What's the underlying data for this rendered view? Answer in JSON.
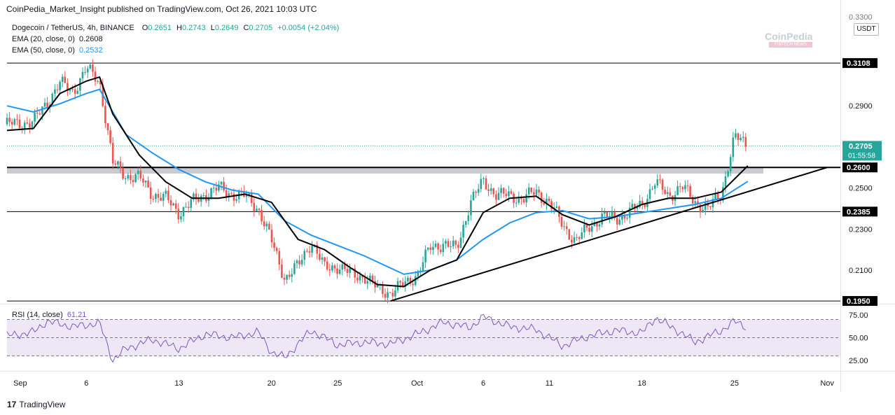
{
  "header": {
    "publisher": "CoinPedia_Market_Insight published on TradingView.com, Oct 26, 2021 10:03 UTC"
  },
  "legend": {
    "symbol": "Dogecoin / TetherUS, 4h, BINANCE",
    "open_label": "O",
    "open": "0.2651",
    "high_label": "H",
    "high": "0.2743",
    "low_label": "L",
    "low": "0.2649",
    "close_label": "C",
    "close": "0.2705",
    "change": "+0.0054 (+2.04%)",
    "ema20_label": "EMA (20, close, 0)",
    "ema20_value": "0.2608",
    "ema50_label": "EMA (50, close, 0)",
    "ema50_value": "0.2532",
    "rsi_label": "RSI (14, close)",
    "rsi_value": "61.21"
  },
  "currency_button": "USDT",
  "logo": {
    "name": "CoinPedia",
    "tag": "FINTECH NEWS"
  },
  "footer": {
    "brand": "TradingView"
  },
  "colors": {
    "up": "#26a69a",
    "down": "#ef5350",
    "ema20": "#000000",
    "ema50": "#2196f3",
    "rsi": "#7e57c2",
    "rsi_band": "#ede7f6",
    "zone": "#b2b5be"
  },
  "chart_data": [
    {
      "type": "candlestick",
      "title": "Dogecoin / TetherUS, 4h, BINANCE",
      "x_ticks": [
        "Sep",
        "6",
        "13",
        "20",
        "25",
        "Oct",
        "6",
        "11",
        "18",
        "25",
        "Nov"
      ],
      "y_ticks": [
        "0.2900",
        "0.2700",
        "0.2500",
        "0.2300",
        "0.2100"
      ],
      "y_top_partial": "0.3300",
      "ylim": [
        0.194,
        0.334
      ],
      "horizontal_levels": [
        {
          "value": 0.3108,
          "label": "0.3108"
        },
        {
          "value": 0.26,
          "label": "0.2600"
        },
        {
          "value": 0.2385,
          "label": "0.2385"
        },
        {
          "value": 0.195,
          "label": "0.1950"
        }
      ],
      "support_zone": {
        "from": 0.257,
        "to": 0.26
      },
      "last_price": {
        "value": 0.2705,
        "label": "0.2705",
        "countdown": "01:55:58"
      },
      "trendline": {
        "from": {
          "date": "2021-09-29",
          "value": 0.195
        },
        "to": {
          "date": "2021-11-01",
          "value": 0.26
        }
      },
      "ema20": [
        [
          "2021-08-31",
          0.278
        ],
        [
          "2021-09-02",
          0.279
        ],
        [
          "2021-09-04",
          0.296
        ],
        [
          "2021-09-06",
          0.302
        ],
        [
          "2021-09-07",
          0.304
        ],
        [
          "2021-09-08",
          0.286
        ],
        [
          "2021-09-10",
          0.266
        ],
        [
          "2021-09-12",
          0.253
        ],
        [
          "2021-09-14",
          0.245
        ],
        [
          "2021-09-16",
          0.245
        ],
        [
          "2021-09-18",
          0.247
        ],
        [
          "2021-09-20",
          0.243
        ],
        [
          "2021-09-22",
          0.225
        ],
        [
          "2021-09-24",
          0.22
        ],
        [
          "2021-09-26",
          0.211
        ],
        [
          "2021-09-28",
          0.203
        ],
        [
          "2021-09-30",
          0.202
        ],
        [
          "2021-10-02",
          0.21
        ],
        [
          "2021-10-04",
          0.215
        ],
        [
          "2021-10-06",
          0.238
        ],
        [
          "2021-10-08",
          0.245
        ],
        [
          "2021-10-10",
          0.246
        ],
        [
          "2021-10-12",
          0.237
        ],
        [
          "2021-10-14",
          0.232
        ],
        [
          "2021-10-16",
          0.236
        ],
        [
          "2021-10-18",
          0.242
        ],
        [
          "2021-10-20",
          0.245
        ],
        [
          "2021-10-22",
          0.245
        ],
        [
          "2021-10-24",
          0.248
        ],
        [
          "2021-10-26",
          0.2608
        ]
      ],
      "ema50": [
        [
          "2021-08-31",
          0.29
        ],
        [
          "2021-09-02",
          0.287
        ],
        [
          "2021-09-04",
          0.291
        ],
        [
          "2021-09-06",
          0.296
        ],
        [
          "2021-09-07",
          0.298
        ],
        [
          "2021-09-09",
          0.276
        ],
        [
          "2021-09-11",
          0.267
        ],
        [
          "2021-09-13",
          0.259
        ],
        [
          "2021-09-15",
          0.253
        ],
        [
          "2021-09-17",
          0.249
        ],
        [
          "2021-09-19",
          0.247
        ],
        [
          "2021-09-21",
          0.234
        ],
        [
          "2021-09-23",
          0.227
        ],
        [
          "2021-09-25",
          0.222
        ],
        [
          "2021-09-27",
          0.217
        ],
        [
          "2021-09-30",
          0.208
        ],
        [
          "2021-10-02",
          0.21
        ],
        [
          "2021-10-04",
          0.215
        ],
        [
          "2021-10-06",
          0.225
        ],
        [
          "2021-10-08",
          0.233
        ],
        [
          "2021-10-10",
          0.238
        ],
        [
          "2021-10-12",
          0.239
        ],
        [
          "2021-10-14",
          0.235
        ],
        [
          "2021-10-16",
          0.236
        ],
        [
          "2021-10-18",
          0.238
        ],
        [
          "2021-10-20",
          0.24
        ],
        [
          "2021-10-22",
          0.242
        ],
        [
          "2021-10-24",
          0.245
        ],
        [
          "2021-10-26",
          0.2532
        ]
      ],
      "price_path": [
        [
          "2021-08-31",
          0.281
        ],
        [
          "2021-09-02",
          0.282
        ],
        [
          "2021-09-04",
          0.301
        ],
        [
          "2021-09-05",
          0.297
        ],
        [
          "2021-09-06",
          0.308
        ],
        [
          "2021-09-07",
          0.302
        ],
        [
          "2021-09-08",
          0.262
        ],
        [
          "2021-09-09",
          0.256
        ],
        [
          "2021-09-10",
          0.255
        ],
        [
          "2021-09-11",
          0.247
        ],
        [
          "2021-09-12",
          0.245
        ],
        [
          "2021-09-13",
          0.238
        ],
        [
          "2021-09-14",
          0.243
        ],
        [
          "2021-09-15",
          0.247
        ],
        [
          "2021-09-16",
          0.25
        ],
        [
          "2021-09-17",
          0.247
        ],
        [
          "2021-09-18",
          0.246
        ],
        [
          "2021-09-19",
          0.24
        ],
        [
          "2021-09-20",
          0.224
        ],
        [
          "2021-09-21",
          0.206
        ],
        [
          "2021-09-22",
          0.212
        ],
        [
          "2021-09-23",
          0.224
        ],
        [
          "2021-09-24",
          0.211
        ],
        [
          "2021-09-25",
          0.212
        ],
        [
          "2021-09-26",
          0.208
        ],
        [
          "2021-09-27",
          0.207
        ],
        [
          "2021-09-28",
          0.201
        ],
        [
          "2021-09-29",
          0.199
        ],
        [
          "2021-09-30",
          0.203
        ],
        [
          "2021-10-01",
          0.208
        ],
        [
          "2021-10-02",
          0.221
        ],
        [
          "2021-10-03",
          0.223
        ],
        [
          "2021-10-04",
          0.22
        ],
        [
          "2021-10-05",
          0.243
        ],
        [
          "2021-10-06",
          0.253
        ],
        [
          "2021-10-07",
          0.247
        ],
        [
          "2021-10-08",
          0.246
        ],
        [
          "2021-10-09",
          0.245
        ],
        [
          "2021-10-10",
          0.248
        ],
        [
          "2021-10-11",
          0.243
        ],
        [
          "2021-10-12",
          0.232
        ],
        [
          "2021-10-13",
          0.224
        ],
        [
          "2021-10-14",
          0.231
        ],
        [
          "2021-10-15",
          0.236
        ],
        [
          "2021-10-16",
          0.235
        ],
        [
          "2021-10-17",
          0.238
        ],
        [
          "2021-10-18",
          0.242
        ],
        [
          "2021-10-19",
          0.253
        ],
        [
          "2021-10-20",
          0.246
        ],
        [
          "2021-10-21",
          0.251
        ],
        [
          "2021-10-22",
          0.243
        ],
        [
          "2021-10-23",
          0.24
        ],
        [
          "2021-10-24",
          0.247
        ],
        [
          "2021-10-25",
          0.275
        ],
        [
          "2021-10-26",
          0.2705
        ]
      ]
    },
    {
      "type": "line",
      "title": "RSI (14, close)",
      "y_ticks": [
        "75.00",
        "50.00",
        "25.00"
      ],
      "ylim": [
        15,
        85
      ],
      "band": [
        30,
        70
      ],
      "values": [
        [
          "2021-08-31",
          52
        ],
        [
          "2021-09-02",
          56
        ],
        [
          "2021-09-03",
          68
        ],
        [
          "2021-09-05",
          62
        ],
        [
          "2021-09-07",
          66
        ],
        [
          "2021-09-08",
          25
        ],
        [
          "2021-09-09",
          38
        ],
        [
          "2021-09-11",
          48
        ],
        [
          "2021-09-13",
          38
        ],
        [
          "2021-09-15",
          54
        ],
        [
          "2021-09-17",
          50
        ],
        [
          "2021-09-19",
          56
        ],
        [
          "2021-09-20",
          34
        ],
        [
          "2021-09-21",
          28
        ],
        [
          "2021-09-23",
          58
        ],
        [
          "2021-09-25",
          42
        ],
        [
          "2021-09-27",
          45
        ],
        [
          "2021-09-29",
          43
        ],
        [
          "2021-10-01",
          54
        ],
        [
          "2021-10-03",
          67
        ],
        [
          "2021-10-05",
          61
        ],
        [
          "2021-10-06",
          73
        ],
        [
          "2021-10-08",
          62
        ],
        [
          "2021-10-10",
          59
        ],
        [
          "2021-10-12",
          41
        ],
        [
          "2021-10-14",
          52
        ],
        [
          "2021-10-16",
          58
        ],
        [
          "2021-10-18",
          55
        ],
        [
          "2021-10-19",
          72
        ],
        [
          "2021-10-21",
          55
        ],
        [
          "2021-10-22",
          45
        ],
        [
          "2021-10-24",
          58
        ],
        [
          "2021-10-25",
          68
        ],
        [
          "2021-10-26",
          61.21
        ]
      ]
    }
  ]
}
